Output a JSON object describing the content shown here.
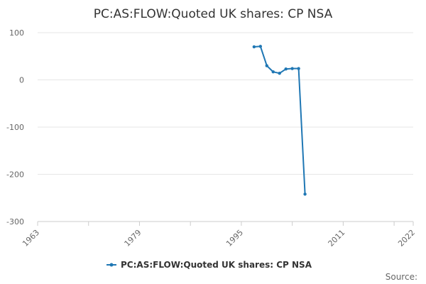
{
  "chart_data": {
    "type": "line",
    "title": "PC:AS:FLOW:Quoted UK shares: CP NSA",
    "xlabel": "",
    "ylabel": "",
    "xlim": [
      1963,
      2022
    ],
    "ylim": [
      -300,
      100
    ],
    "x_ticks": [
      "1963",
      "1979",
      "1995",
      "2011",
      "2022"
    ],
    "y_ticks": [
      "100",
      "0",
      "-100",
      "-200",
      "-300"
    ],
    "series": [
      {
        "name": "PC:AS:FLOW:Quoted UK shares: CP NSA",
        "color": "#1f77b4",
        "x": [
          1997,
          1998,
          1999,
          2000,
          2001,
          2002,
          2003,
          2004,
          2005
        ],
        "y": [
          70,
          71,
          30,
          17,
          14,
          23,
          24,
          24,
          -242
        ]
      }
    ],
    "grid": "horizontal",
    "legend_position": "bottom-center"
  },
  "footer": {
    "source_label": "Source:"
  }
}
